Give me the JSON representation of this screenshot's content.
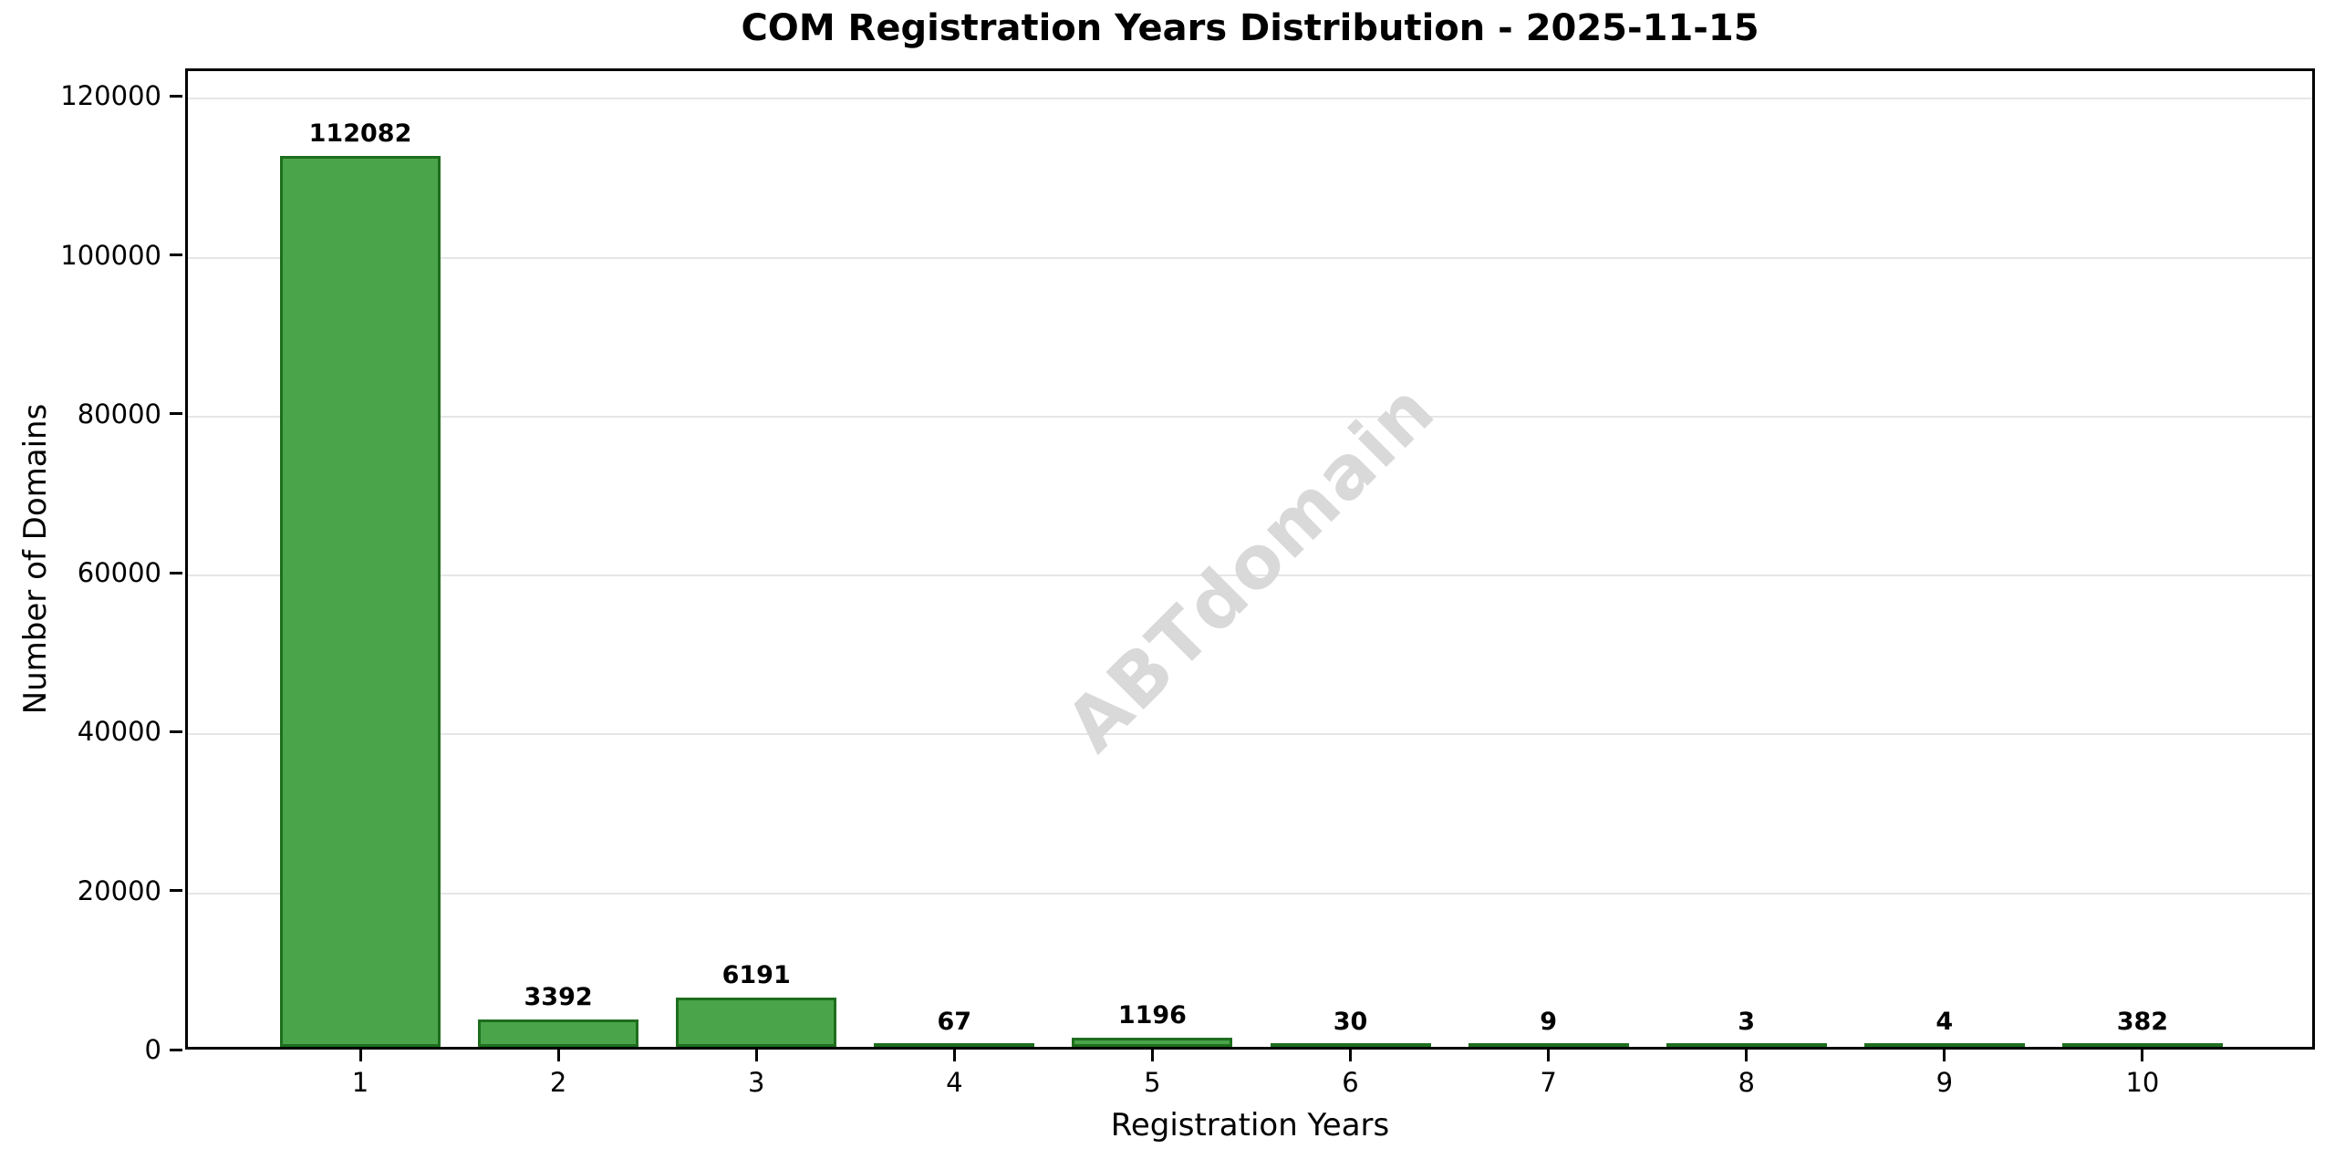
{
  "chart_data": {
    "type": "bar",
    "title": "COM Registration Years Distribution - 2025-11-15",
    "xlabel": "Registration Years",
    "ylabel": "Number of Domains",
    "categories": [
      "1",
      "2",
      "3",
      "4",
      "5",
      "6",
      "7",
      "8",
      "9",
      "10"
    ],
    "values": [
      112082,
      3392,
      6191,
      67,
      1196,
      30,
      9,
      3,
      4,
      382
    ],
    "bar_labels": [
      "112082",
      "3392",
      "6191",
      "67",
      "1196",
      "30",
      "9",
      "3",
      "4",
      "382"
    ],
    "y_ticks": [
      0,
      20000,
      40000,
      60000,
      80000,
      100000,
      120000
    ],
    "y_tick_labels": [
      "0",
      "20000",
      "40000",
      "60000",
      "80000",
      "100000",
      "120000"
    ],
    "ylim": [
      0,
      123500
    ],
    "grid": "horizontal-only",
    "legend": null,
    "watermark": {
      "text": "ABTdomain",
      "angle_deg": -45
    },
    "colors": {
      "bar_fill": "#4aa54a",
      "bar_edge": "#1e6e1e",
      "grid": "#e6e6e6",
      "spine": "#000000",
      "watermark": "#d9d9d9",
      "title": "#000000"
    }
  }
}
